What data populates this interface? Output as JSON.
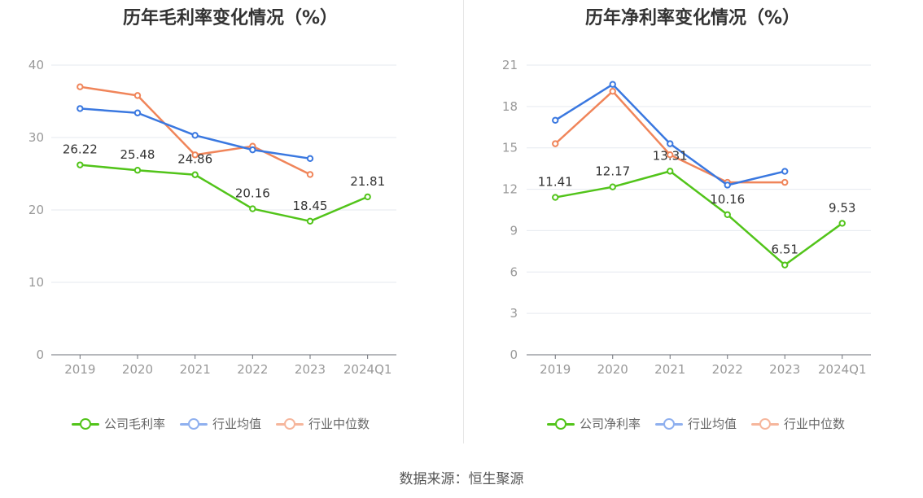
{
  "source_label": "数据来源：恒生聚源",
  "colors": {
    "company": "#52c41a",
    "avg": "#3a78e0",
    "median": "#f0855a"
  },
  "chart_data": [
    {
      "type": "line",
      "title": "历年毛利率变化情况（%）",
      "categories": [
        "2019",
        "2020",
        "2021",
        "2022",
        "2023",
        "2024Q1"
      ],
      "ylim": [
        0,
        40
      ],
      "yticks": [
        0,
        10,
        20,
        30,
        40
      ],
      "grid": true,
      "legend_position": "bottom",
      "series": [
        {
          "name": "公司毛利率",
          "values": [
            26.22,
            25.48,
            24.86,
            20.16,
            18.45,
            21.81
          ],
          "labels": [
            "26.22",
            "25.48",
            "24.86",
            "20.16",
            "18.45",
            "21.81"
          ]
        },
        {
          "name": "行业均值",
          "values": [
            34.0,
            33.4,
            30.3,
            28.3,
            27.1,
            null
          ]
        },
        {
          "name": "行业中位数",
          "values": [
            37.0,
            35.8,
            27.6,
            28.8,
            24.9,
            null
          ]
        }
      ]
    },
    {
      "type": "line",
      "title": "历年净利率变化情况（%）",
      "categories": [
        "2019",
        "2020",
        "2021",
        "2022",
        "2023",
        "2024Q1"
      ],
      "ylim": [
        0,
        21
      ],
      "yticks": [
        0,
        3,
        6,
        9,
        12,
        15,
        18,
        21
      ],
      "grid": true,
      "legend_position": "bottom",
      "series": [
        {
          "name": "公司净利率",
          "values": [
            11.41,
            12.17,
            13.31,
            10.16,
            6.51,
            9.53
          ],
          "labels": [
            "11.41",
            "12.17",
            "13.31",
            "10.16",
            "6.51",
            "9.53"
          ]
        },
        {
          "name": "行业均值",
          "values": [
            17.0,
            19.6,
            15.3,
            12.3,
            13.3,
            null
          ]
        },
        {
          "name": "行业中位数",
          "values": [
            15.3,
            19.1,
            14.5,
            12.5,
            12.5,
            null
          ]
        }
      ]
    }
  ]
}
